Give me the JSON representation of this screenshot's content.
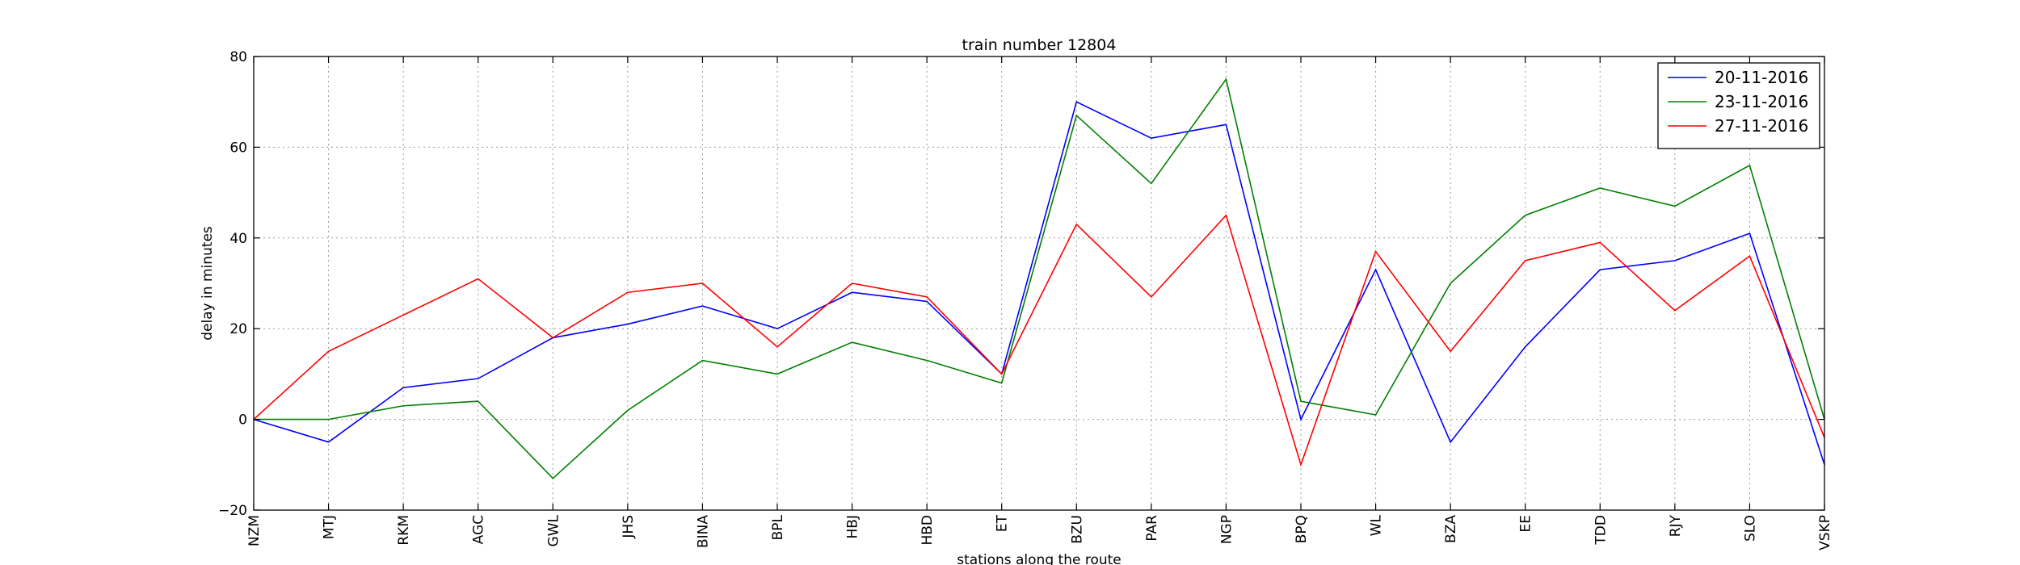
{
  "chart_data": {
    "type": "line",
    "title": "train number 12804",
    "xlabel": "stations along the route",
    "ylabel": "delay in minutes",
    "categories": [
      "NZM",
      "MTJ",
      "RKM",
      "AGC",
      "GWL",
      "JHS",
      "BINA",
      "BPL",
      "HBJ",
      "HBD",
      "ET",
      "BZU",
      "PAR",
      "NGP",
      "BPQ",
      "WL",
      "BZA",
      "EE",
      "TDD",
      "RJY",
      "SLO",
      "VSKP"
    ],
    "ylim": [
      -20,
      80
    ],
    "yticks": [
      -20,
      0,
      20,
      40,
      60,
      80
    ],
    "grid": true,
    "legend_position": "top-right",
    "series": [
      {
        "name": "20-11-2016",
        "color": "#0000ff",
        "values": [
          0,
          -5,
          7,
          9,
          18,
          21,
          25,
          20,
          28,
          26,
          10,
          70,
          62,
          65,
          0,
          33,
          -5,
          16,
          33,
          35,
          41,
          -10
        ]
      },
      {
        "name": "23-11-2016",
        "color": "#008000",
        "values": [
          0,
          0,
          3,
          4,
          -13,
          2,
          13,
          10,
          17,
          13,
          8,
          67,
          52,
          75,
          4,
          1,
          30,
          45,
          51,
          47,
          56,
          0
        ]
      },
      {
        "name": "27-11-2016",
        "color": "#ff0000",
        "values": [
          0,
          15,
          23,
          31,
          18,
          28,
          30,
          16,
          30,
          27,
          10,
          43,
          27,
          45,
          -10,
          37,
          15,
          35,
          39,
          24,
          36,
          -4
        ]
      }
    ]
  }
}
